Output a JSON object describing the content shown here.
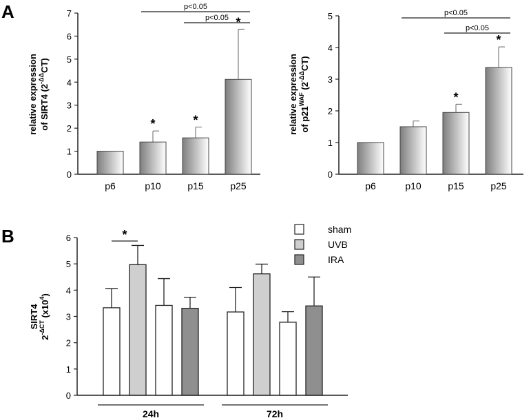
{
  "panels": {
    "a": "A",
    "b": "B"
  },
  "sub": {
    "sup_prefix": "-ΔΔ",
    "sup_prefix_b": "-ΔCT",
    "waf": "WAF",
    "exp4": "4"
  },
  "chart_data": [
    {
      "id": "sirt4_passage",
      "type": "bar",
      "categories": [
        "p6",
        "p10",
        "p15",
        "p25"
      ],
      "values": [
        1.0,
        1.4,
        1.58,
        4.12
      ],
      "errors": [
        0,
        0.48,
        0.47,
        2.18
      ],
      "stars": [
        "",
        "*",
        "*",
        "*"
      ],
      "ylim": [
        0,
        7
      ],
      "yticks": [
        "0",
        "1",
        "2",
        "3",
        "4",
        "5",
        "6",
        "7"
      ],
      "ylabel_line1": "relative expression",
      "ylabel_line2_pre": "of SIRT4 (2",
      "ylabel_line2_post": "CT)",
      "brackets": [
        {
          "from": 1,
          "to": 3,
          "label": "p<0.05",
          "level": 1
        },
        {
          "from": 2,
          "to": 3,
          "label": "p<0.05",
          "level": 0
        }
      ]
    },
    {
      "id": "p21_passage",
      "type": "bar",
      "categories": [
        "p6",
        "p10",
        "p15",
        "p25"
      ],
      "values": [
        1.0,
        1.5,
        1.95,
        3.37
      ],
      "errors": [
        0,
        0.18,
        0.26,
        0.65
      ],
      "stars": [
        "",
        "",
        "*",
        "*"
      ],
      "ylim": [
        0,
        5
      ],
      "yticks": [
        "0",
        "1",
        "2",
        "3",
        "4",
        "5"
      ],
      "ylabel_line1": "relative expression",
      "ylabel_line2_pre": "of p21",
      "ylabel_line2_post": " (2",
      "ylabel_line2_tail": "CT)",
      "brackets": [
        {
          "from": 1,
          "to": 3,
          "label": "p<0.05",
          "level": 1
        },
        {
          "from": 2,
          "to": 3,
          "label": "p<0.05",
          "level": 0
        }
      ]
    },
    {
      "id": "sirt4_treatment",
      "type": "bar",
      "groups": [
        "24h",
        "72h"
      ],
      "series": [
        {
          "name": "sham",
          "color": "#ffffff",
          "values": [
            3.33,
            3.17
          ],
          "errors": [
            0.73,
            0.93
          ]
        },
        {
          "name": "UVB",
          "color": "#cfcfcf",
          "values": [
            4.97,
            4.62
          ],
          "errors": [
            0.73,
            0.37
          ]
        },
        {
          "name": "sham",
          "color": "#ffffff",
          "values": [
            3.42,
            2.78
          ],
          "errors": [
            1.02,
            0.4
          ]
        },
        {
          "name": "IRA",
          "color": "#8f8f8f",
          "values": [
            3.31,
            3.4
          ],
          "errors": [
            0.42,
            1.1
          ]
        }
      ],
      "legend": [
        {
          "name": "sham",
          "color": "#ffffff"
        },
        {
          "name": "UVB",
          "color": "#cfcfcf"
        },
        {
          "name": "IRA",
          "color": "#8f8f8f"
        }
      ],
      "ylim": [
        0,
        6
      ],
      "yticks": [
        "0",
        "1",
        "2",
        "3",
        "4",
        "5",
        "6"
      ],
      "ylabel_line1": "SIRT4",
      "ylabel_line2_pre": "2",
      "ylabel_line2_post": " (x10",
      "ylabel_line2_tail": ")",
      "significance": {
        "group": 0,
        "from": 0,
        "to": 1,
        "label": "*"
      }
    }
  ]
}
